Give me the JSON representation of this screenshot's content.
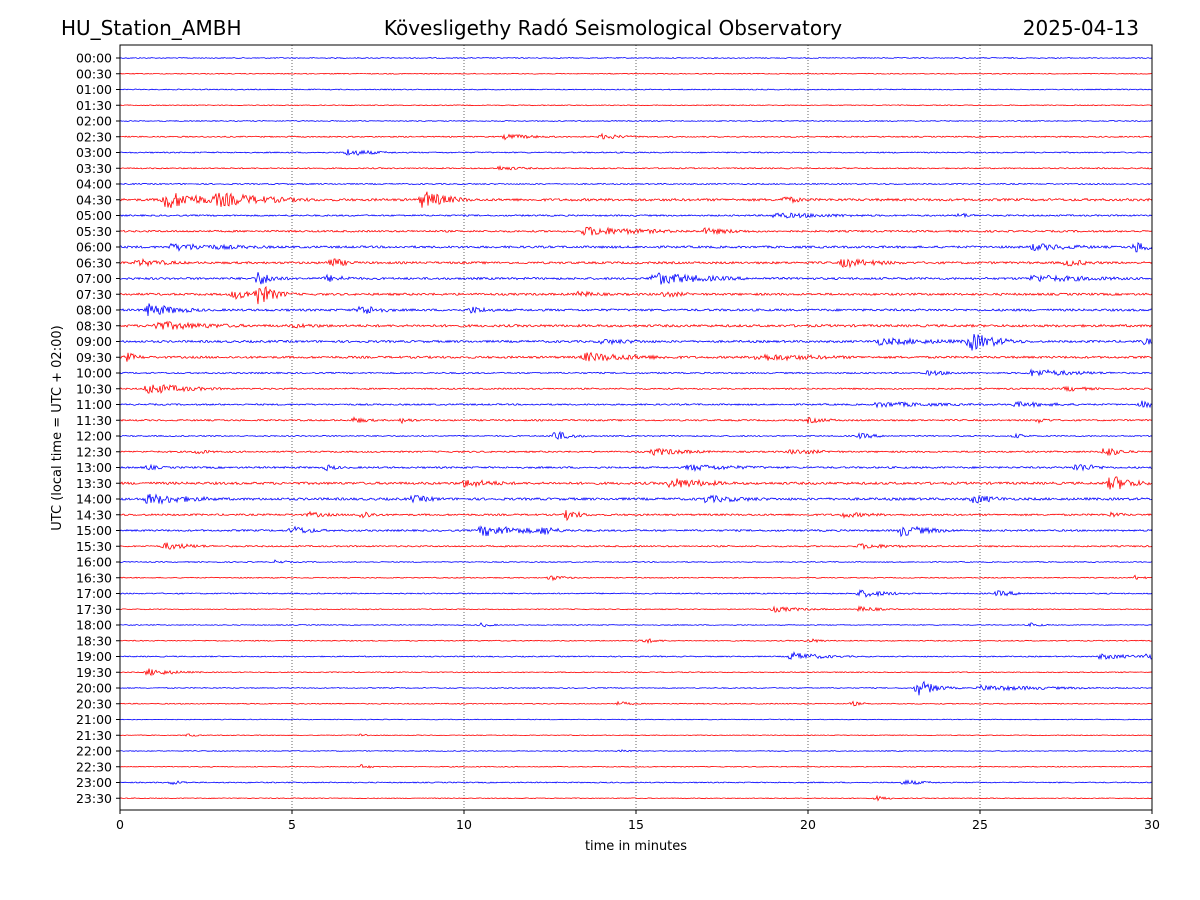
{
  "header": {
    "station": "HU_Station_AMBH",
    "observatory": "Kövesligethy Radó Seismological Observatory",
    "date": "2025-04-13"
  },
  "chart_data": {
    "type": "line",
    "title": "Kövesligethy Radó Seismological Observatory",
    "xlabel": "time in minutes",
    "ylabel": "UTC (local time = UTC + 02:00)",
    "xlim": [
      0,
      30
    ],
    "x_ticks": [
      0,
      5,
      10,
      15,
      20,
      25,
      30
    ],
    "x_tick_labels": [
      "0",
      "5",
      "10",
      "15",
      "20",
      "25",
      "30"
    ],
    "grid": "vertical dotted lines at x ticks",
    "row_colors": [
      "#0000ff",
      "#ff0000"
    ],
    "rows": [
      {
        "label": "00:00",
        "noise": 0.8,
        "events": []
      },
      {
        "label": "00:30",
        "noise": 0.7,
        "events": []
      },
      {
        "label": "01:00",
        "noise": 0.8,
        "events": []
      },
      {
        "label": "01:30",
        "noise": 0.7,
        "events": []
      },
      {
        "label": "02:00",
        "noise": 0.8,
        "events": []
      },
      {
        "label": "02:30",
        "noise": 1.0,
        "events": [
          {
            "t": 11.2,
            "amp": 3,
            "dur": 1.2
          },
          {
            "t": 14.0,
            "amp": 3,
            "dur": 1.0
          }
        ]
      },
      {
        "label": "03:00",
        "noise": 1.0,
        "events": [
          {
            "t": 6.6,
            "amp": 4,
            "dur": 1.0
          }
        ]
      },
      {
        "label": "03:30",
        "noise": 1.0,
        "events": [
          {
            "t": 11.0,
            "amp": 2.5,
            "dur": 1.0
          }
        ]
      },
      {
        "label": "04:00",
        "noise": 1.0,
        "events": []
      },
      {
        "label": "04:30",
        "noise": 2.0,
        "events": [
          {
            "t": 1.3,
            "amp": 10,
            "dur": 1.5
          },
          {
            "t": 2.8,
            "amp": 8,
            "dur": 2.0
          },
          {
            "t": 8.8,
            "amp": 10,
            "dur": 0.9
          },
          {
            "t": 19.3,
            "amp": 4,
            "dur": 0.8
          }
        ]
      },
      {
        "label": "05:00",
        "noise": 1.3,
        "events": [
          {
            "t": 19.0,
            "amp": 3,
            "dur": 3.0
          },
          {
            "t": 24.4,
            "amp": 3,
            "dur": 0.5
          }
        ]
      },
      {
        "label": "05:30",
        "noise": 1.5,
        "events": [
          {
            "t": 13.5,
            "amp": 5,
            "dur": 2.5
          },
          {
            "t": 17.0,
            "amp": 3.5,
            "dur": 1.5
          }
        ]
      },
      {
        "label": "06:00",
        "noise": 1.8,
        "events": [
          {
            "t": 1.5,
            "amp": 4,
            "dur": 3.0
          },
          {
            "t": 26.5,
            "amp": 4,
            "dur": 2.0
          },
          {
            "t": 29.5,
            "amp": 6,
            "dur": 1.0
          }
        ]
      },
      {
        "label": "06:30",
        "noise": 1.8,
        "events": [
          {
            "t": 0.5,
            "amp": 4,
            "dur": 1.5
          },
          {
            "t": 6.1,
            "amp": 6,
            "dur": 0.6
          },
          {
            "t": 21.0,
            "amp": 5,
            "dur": 1.5
          },
          {
            "t": 27.5,
            "amp": 4,
            "dur": 1.0
          }
        ]
      },
      {
        "label": "07:00",
        "noise": 1.8,
        "events": [
          {
            "t": 4.0,
            "amp": 8,
            "dur": 0.6
          },
          {
            "t": 6.0,
            "amp": 4,
            "dur": 1.0
          },
          {
            "t": 15.5,
            "amp": 7,
            "dur": 2.0
          },
          {
            "t": 26.5,
            "amp": 4,
            "dur": 3.0
          }
        ]
      },
      {
        "label": "07:30",
        "noise": 1.8,
        "events": [
          {
            "t": 3.3,
            "amp": 5,
            "dur": 1.5
          },
          {
            "t": 4.0,
            "amp": 12,
            "dur": 0.6
          },
          {
            "t": 13.3,
            "amp": 3.5,
            "dur": 1.0
          },
          {
            "t": 15.8,
            "amp": 3.5,
            "dur": 1.0
          }
        ]
      },
      {
        "label": "08:00",
        "noise": 1.8,
        "events": [
          {
            "t": 0.8,
            "amp": 7,
            "dur": 1.2
          },
          {
            "t": 7.0,
            "amp": 6,
            "dur": 0.8
          },
          {
            "t": 10.2,
            "amp": 4,
            "dur": 0.8
          }
        ]
      },
      {
        "label": "08:30",
        "noise": 2.0,
        "events": [
          {
            "t": 1.0,
            "amp": 5,
            "dur": 2.5
          },
          {
            "t": 5.0,
            "amp": 2.5,
            "dur": 2.0
          }
        ]
      },
      {
        "label": "09:00",
        "noise": 1.8,
        "events": [
          {
            "t": 14.0,
            "amp": 3,
            "dur": 2.0
          },
          {
            "t": 22.0,
            "amp": 4,
            "dur": 3.0
          },
          {
            "t": 24.7,
            "amp": 10,
            "dur": 1.0
          },
          {
            "t": 29.8,
            "amp": 4,
            "dur": 0.5
          }
        ]
      },
      {
        "label": "09:30",
        "noise": 1.8,
        "events": [
          {
            "t": 0.2,
            "amp": 5,
            "dur": 0.5
          },
          {
            "t": 13.5,
            "amp": 5,
            "dur": 2.5
          },
          {
            "t": 18.5,
            "amp": 4,
            "dur": 3.0
          }
        ]
      },
      {
        "label": "10:00",
        "noise": 1.2,
        "events": [
          {
            "t": 23.5,
            "amp": 3,
            "dur": 1.0
          },
          {
            "t": 26.5,
            "amp": 4,
            "dur": 2.0
          }
        ]
      },
      {
        "label": "10:30",
        "noise": 1.2,
        "events": [
          {
            "t": 0.8,
            "amp": 6,
            "dur": 1.5
          },
          {
            "t": 27.5,
            "amp": 3,
            "dur": 1.0
          }
        ]
      },
      {
        "label": "11:00",
        "noise": 1.3,
        "events": [
          {
            "t": 22.0,
            "amp": 3,
            "dur": 3.0
          },
          {
            "t": 26.0,
            "amp": 3,
            "dur": 2.0
          },
          {
            "t": 29.7,
            "amp": 4,
            "dur": 0.7
          }
        ]
      },
      {
        "label": "11:30",
        "noise": 1.3,
        "events": [
          {
            "t": 6.8,
            "amp": 3.5,
            "dur": 0.6
          },
          {
            "t": 8.2,
            "amp": 3,
            "dur": 0.5
          },
          {
            "t": 20.0,
            "amp": 3,
            "dur": 1.0
          },
          {
            "t": 26.7,
            "amp": 3,
            "dur": 0.5
          }
        ]
      },
      {
        "label": "12:00",
        "noise": 1.0,
        "events": [
          {
            "t": 12.6,
            "amp": 6,
            "dur": 0.6
          },
          {
            "t": 21.5,
            "amp": 3,
            "dur": 0.8
          },
          {
            "t": 26.0,
            "amp": 2.5,
            "dur": 0.6
          }
        ]
      },
      {
        "label": "12:30",
        "noise": 1.3,
        "events": [
          {
            "t": 2.2,
            "amp": 3,
            "dur": 0.6
          },
          {
            "t": 15.5,
            "amp": 4,
            "dur": 1.5
          },
          {
            "t": 19.5,
            "amp": 3,
            "dur": 1.5
          },
          {
            "t": 28.6,
            "amp": 6,
            "dur": 0.6
          }
        ]
      },
      {
        "label": "13:00",
        "noise": 1.5,
        "events": [
          {
            "t": 0.8,
            "amp": 3,
            "dur": 0.6
          },
          {
            "t": 6.0,
            "amp": 3.5,
            "dur": 0.5
          },
          {
            "t": 16.5,
            "amp": 3.5,
            "dur": 2.5
          },
          {
            "t": 27.8,
            "amp": 5,
            "dur": 0.8
          }
        ]
      },
      {
        "label": "13:30",
        "noise": 2.0,
        "events": [
          {
            "t": 10.0,
            "amp": 4.5,
            "dur": 1.5
          },
          {
            "t": 16.0,
            "amp": 6,
            "dur": 1.5
          },
          {
            "t": 28.8,
            "amp": 9,
            "dur": 0.8
          }
        ]
      },
      {
        "label": "14:00",
        "noise": 2.0,
        "events": [
          {
            "t": 0.8,
            "amp": 6,
            "dur": 1.8
          },
          {
            "t": 8.5,
            "amp": 4,
            "dur": 1.0
          },
          {
            "t": 17.0,
            "amp": 4,
            "dur": 2.0
          },
          {
            "t": 24.8,
            "amp": 5,
            "dur": 1.0
          }
        ]
      },
      {
        "label": "14:30",
        "noise": 1.5,
        "events": [
          {
            "t": 5.5,
            "amp": 3,
            "dur": 1.0
          },
          {
            "t": 7.0,
            "amp": 5,
            "dur": 0.5
          },
          {
            "t": 13.0,
            "amp": 6,
            "dur": 0.5
          },
          {
            "t": 21.0,
            "amp": 3,
            "dur": 1.5
          },
          {
            "t": 28.8,
            "amp": 3,
            "dur": 0.6
          }
        ]
      },
      {
        "label": "15:00",
        "noise": 1.5,
        "events": [
          {
            "t": 5.0,
            "amp": 5,
            "dur": 0.8
          },
          {
            "t": 10.5,
            "amp": 6,
            "dur": 2.0
          },
          {
            "t": 12.3,
            "amp": 6,
            "dur": 0.5
          },
          {
            "t": 22.7,
            "amp": 6,
            "dur": 1.2
          }
        ]
      },
      {
        "label": "15:30",
        "noise": 1.2,
        "events": [
          {
            "t": 1.3,
            "amp": 4,
            "dur": 1.2
          },
          {
            "t": 21.5,
            "amp": 3,
            "dur": 1.5
          }
        ]
      },
      {
        "label": "16:00",
        "noise": 0.8,
        "events": [
          {
            "t": 4.5,
            "amp": 2,
            "dur": 0.6
          }
        ]
      },
      {
        "label": "16:30",
        "noise": 0.8,
        "events": [
          {
            "t": 12.5,
            "amp": 3,
            "dur": 0.6
          },
          {
            "t": 29.5,
            "amp": 2.5,
            "dur": 0.4
          }
        ]
      },
      {
        "label": "17:00",
        "noise": 1.0,
        "events": [
          {
            "t": 21.5,
            "amp": 4,
            "dur": 1.2
          },
          {
            "t": 25.5,
            "amp": 3,
            "dur": 1.0
          }
        ]
      },
      {
        "label": "17:30",
        "noise": 0.8,
        "events": [
          {
            "t": 19.0,
            "amp": 3,
            "dur": 1.2
          },
          {
            "t": 21.5,
            "amp": 3,
            "dur": 0.8
          }
        ]
      },
      {
        "label": "18:00",
        "noise": 0.7,
        "events": [
          {
            "t": 10.5,
            "amp": 2.5,
            "dur": 0.4
          },
          {
            "t": 26.5,
            "amp": 2.5,
            "dur": 0.4
          }
        ]
      },
      {
        "label": "18:30",
        "noise": 0.8,
        "events": [
          {
            "t": 15.2,
            "amp": 3,
            "dur": 0.6
          },
          {
            "t": 20.0,
            "amp": 2.5,
            "dur": 0.6
          }
        ]
      },
      {
        "label": "19:00",
        "noise": 0.9,
        "events": [
          {
            "t": 19.5,
            "amp": 4.5,
            "dur": 1.2
          },
          {
            "t": 28.5,
            "amp": 3,
            "dur": 1.5
          },
          {
            "t": 29.8,
            "amp": 4,
            "dur": 0.5
          }
        ]
      },
      {
        "label": "19:30",
        "noise": 0.8,
        "events": [
          {
            "t": 0.8,
            "amp": 4,
            "dur": 1.0
          }
        ]
      },
      {
        "label": "20:00",
        "noise": 0.8,
        "events": [
          {
            "t": 23.2,
            "amp": 9,
            "dur": 0.6
          },
          {
            "t": 25.0,
            "amp": 3,
            "dur": 3.0
          }
        ]
      },
      {
        "label": "20:30",
        "noise": 0.8,
        "events": [
          {
            "t": 14.5,
            "amp": 2.5,
            "dur": 0.5
          },
          {
            "t": 21.3,
            "amp": 2.5,
            "dur": 0.4
          }
        ]
      },
      {
        "label": "21:00",
        "noise": 0.6,
        "events": []
      },
      {
        "label": "21:30",
        "noise": 0.6,
        "events": [
          {
            "t": 2.0,
            "amp": 2,
            "dur": 0.3
          },
          {
            "t": 7.0,
            "amp": 2,
            "dur": 0.3
          }
        ]
      },
      {
        "label": "22:00",
        "noise": 0.7,
        "events": [
          {
            "t": 14.5,
            "amp": 2,
            "dur": 0.5
          }
        ]
      },
      {
        "label": "22:30",
        "noise": 0.7,
        "events": [
          {
            "t": 7.0,
            "amp": 2.5,
            "dur": 0.4
          }
        ]
      },
      {
        "label": "23:00",
        "noise": 0.9,
        "events": [
          {
            "t": 1.5,
            "amp": 2.5,
            "dur": 0.6
          },
          {
            "t": 22.8,
            "amp": 3,
            "dur": 0.8
          }
        ]
      },
      {
        "label": "23:30",
        "noise": 0.7,
        "events": [
          {
            "t": 22.0,
            "amp": 2.5,
            "dur": 0.5
          }
        ]
      }
    ]
  }
}
